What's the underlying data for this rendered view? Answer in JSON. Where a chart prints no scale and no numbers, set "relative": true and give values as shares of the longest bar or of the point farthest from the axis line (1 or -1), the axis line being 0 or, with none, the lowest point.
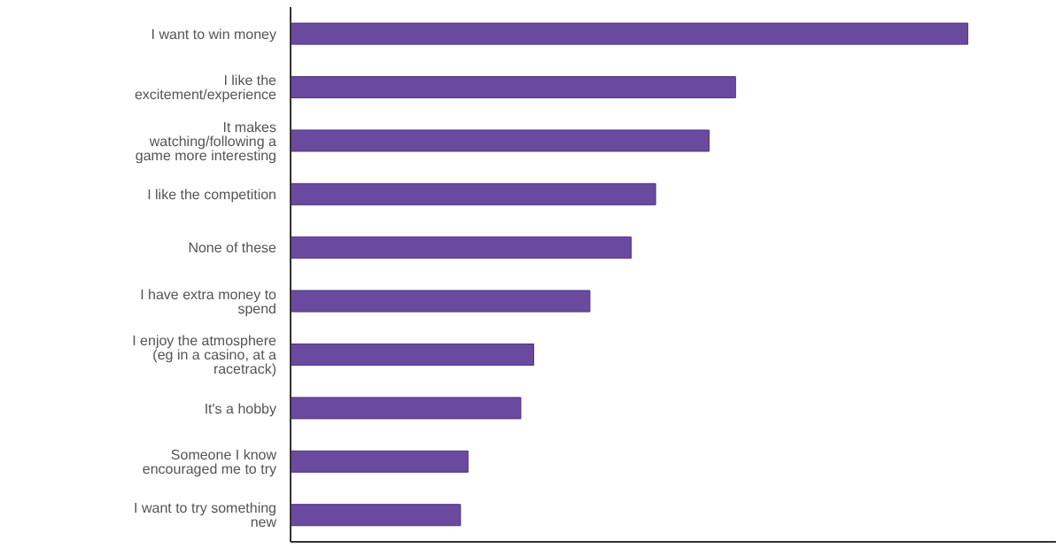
{
  "chart_data": {
    "type": "bar",
    "orientation": "horizontal",
    "relative": true,
    "color": "#6a4a9e",
    "categories": [
      "I want to win money",
      "I like the excitement/experience",
      "It makes watching/following a game more interesting",
      "I like the competition",
      "None of these",
      "I have extra money to spend",
      "I enjoy the atmosphere (eg in a casino, at a racetrack)",
      "It's a hobby",
      "Someone I know encouraged me to try",
      "I want to try something new"
    ],
    "values": [
      1,
      0.657,
      0.618,
      0.539,
      0.503,
      0.442,
      0.359,
      0.34,
      0.262,
      0.251
    ]
  }
}
